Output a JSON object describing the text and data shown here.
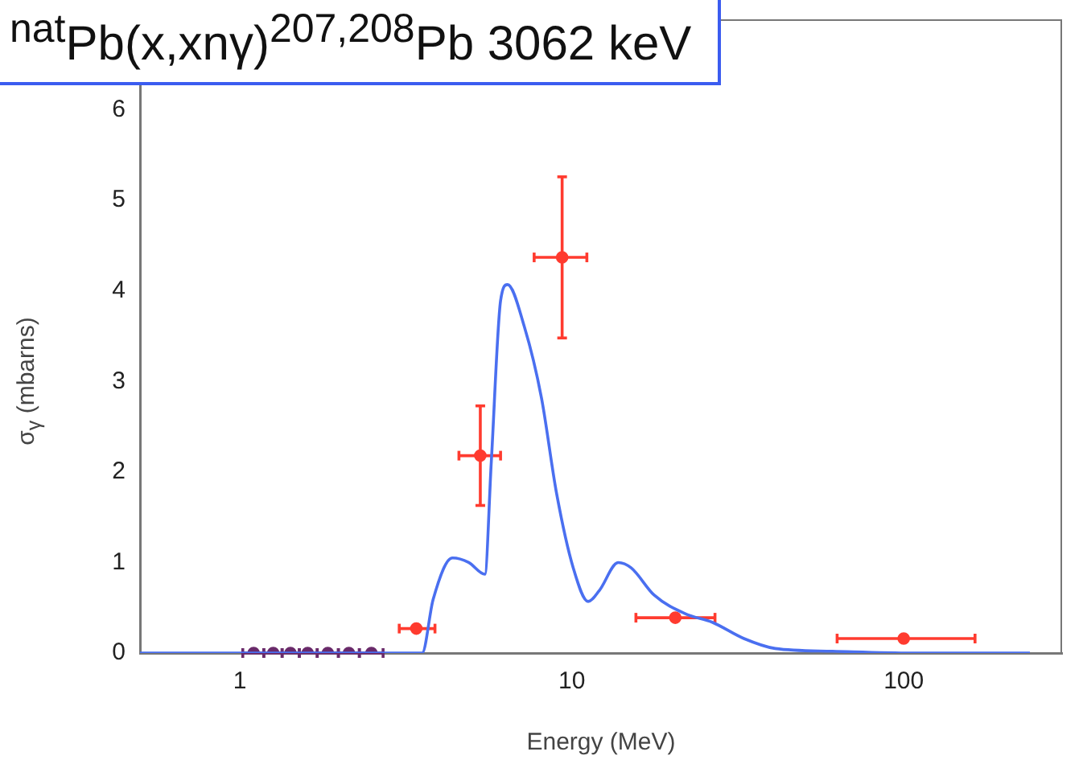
{
  "chart_data": {
    "type": "line",
    "title": "$^{nat}$Pb(x,xnγ)$^{207,208}$Pb 3062 keV",
    "xlabel": "Energy (MeV)",
    "ylabel": "σ$_{γ}$ (mbarns)",
    "log": "x",
    "grid": false,
    "legend": false,
    "xlim": [
      0.5,
      300
    ],
    "xticks": [
      1,
      10,
      100
    ],
    "ylim": [
      0,
      7
    ],
    "yticks": [
      0,
      1,
      2,
      3,
      4,
      5,
      6
    ],
    "series": [
      {
        "color": "#4a6ff0",
        "marker": "none",
        "x": [
          0.5,
          3.54,
          3.82,
          4.37,
          4.89,
          5.47,
          5.72,
          6.1,
          6.4,
          7.2,
          8.1,
          9.0,
          10.1,
          11.2,
          12.1,
          13.8,
          15.1,
          17.7,
          22.1,
          26.5,
          33,
          41,
          61,
          106,
          240
        ],
        "values": [
          0,
          0,
          0.59,
          1.05,
          1.0,
          0.87,
          2.11,
          3.89,
          4.07,
          3.6,
          2.82,
          1.76,
          0.94,
          0.57,
          0.69,
          1.0,
          0.94,
          0.64,
          0.43,
          0.34,
          0.16,
          0.05,
          0.02,
          0,
          0
        ]
      },
      {
        "type": "scatter",
        "color": "#ff3b2f",
        "marker": "circle",
        "x": [
          3.4,
          5.3,
          9.35,
          20.5,
          100
        ],
        "values": [
          0.27,
          2.18,
          4.37,
          0.39,
          0.16
        ],
        "errors": [
          null,
          [
            1.63,
            2.73
          ],
          [
            3.48,
            5.26
          ],
          null,
          null
        ],
        "xerrors": [
          [
            3.02,
            3.87
          ],
          [
            4.57,
            6.1
          ],
          [
            7.7,
            11.1
          ],
          [
            15.6,
            27
          ],
          [
            63,
            164
          ]
        ]
      },
      {
        "type": "scatter",
        "color": "#6a2a6a",
        "marker": "circle",
        "x": [
          1.1,
          1.26,
          1.42,
          1.6,
          1.84,
          2.13,
          2.49
        ],
        "values": [
          0,
          0,
          0,
          0,
          0,
          0,
          0
        ],
        "xerrors": [
          [
            1.02,
            1.18
          ],
          [
            1.18,
            1.34
          ],
          [
            1.34,
            1.51
          ],
          [
            1.51,
            1.71
          ],
          [
            1.71,
            1.98
          ],
          [
            1.98,
            2.29
          ],
          [
            2.29,
            2.7
          ]
        ]
      }
    ]
  }
}
